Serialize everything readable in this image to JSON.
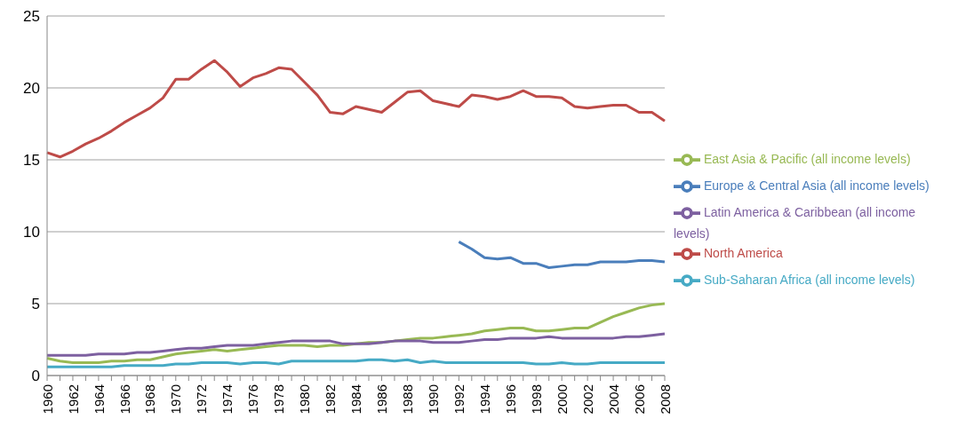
{
  "chart_data": {
    "type": "line",
    "categories": [
      "1960",
      null,
      "1962",
      null,
      "1964",
      null,
      "1966",
      null,
      "1968",
      null,
      "1970",
      null,
      "1972",
      null,
      "1974",
      null,
      "1976",
      null,
      "1978",
      null,
      "1980",
      null,
      "1982",
      null,
      "1984",
      null,
      "1986",
      null,
      "1988",
      null,
      "1990",
      null,
      "1992",
      null,
      "1994",
      null,
      "1996",
      null,
      "1998",
      null,
      "2000",
      null,
      "2002",
      null,
      "2004",
      null,
      "2006",
      null,
      "2008"
    ],
    "series": [
      {
        "name": "Europe & Central Asia (all income levels)",
        "color": "#4a7ebb",
        "values": [
          null,
          null,
          null,
          null,
          null,
          null,
          null,
          null,
          null,
          null,
          null,
          null,
          null,
          null,
          null,
          null,
          null,
          null,
          null,
          null,
          null,
          null,
          null,
          null,
          null,
          null,
          null,
          null,
          null,
          null,
          null,
          null,
          9.3,
          8.8,
          8.2,
          8.1,
          8.2,
          7.8,
          7.8,
          7.5,
          7.6,
          7.7,
          7.7,
          7.9,
          7.9,
          7.9,
          8.0,
          8.0,
          7.9
        ]
      },
      {
        "name": "North America",
        "color": "#be4b48",
        "values": [
          15.5,
          15.2,
          15.6,
          16.1,
          16.5,
          17.0,
          17.6,
          18.1,
          18.6,
          19.3,
          20.6,
          20.6,
          21.3,
          21.9,
          21.1,
          20.1,
          20.7,
          21.0,
          21.4,
          21.3,
          20.4,
          19.5,
          18.3,
          18.2,
          18.7,
          18.5,
          18.3,
          19.0,
          19.7,
          19.8,
          19.1,
          18.9,
          18.7,
          19.5,
          19.4,
          19.2,
          19.4,
          19.8,
          19.4,
          19.4,
          19.3,
          18.7,
          18.6,
          18.7,
          18.8,
          18.8,
          18.3,
          18.3,
          17.7
        ]
      },
      {
        "name": "East Asia & Pacific (all income levels)",
        "color": "#98b954",
        "values": [
          1.2,
          1.0,
          0.9,
          0.9,
          0.9,
          1.0,
          1.0,
          1.1,
          1.1,
          1.3,
          1.5,
          1.6,
          1.7,
          1.8,
          1.7,
          1.8,
          1.9,
          2.0,
          2.1,
          2.1,
          2.1,
          2.0,
          2.1,
          2.1,
          2.2,
          2.3,
          2.3,
          2.4,
          2.5,
          2.6,
          2.6,
          2.7,
          2.8,
          2.9,
          3.1,
          3.2,
          3.3,
          3.3,
          3.1,
          3.1,
          3.2,
          3.3,
          3.3,
          3.7,
          4.1,
          4.4,
          4.7,
          4.9,
          5.0
        ]
      },
      {
        "name": "Latin America & Caribbean (all income levels)",
        "color": "#7d60a0",
        "values": [
          1.4,
          1.4,
          1.4,
          1.4,
          1.5,
          1.5,
          1.5,
          1.6,
          1.6,
          1.7,
          1.8,
          1.9,
          1.9,
          2.0,
          2.1,
          2.1,
          2.1,
          2.2,
          2.3,
          2.4,
          2.4,
          2.4,
          2.4,
          2.2,
          2.2,
          2.2,
          2.3,
          2.4,
          2.4,
          2.4,
          2.3,
          2.3,
          2.3,
          2.4,
          2.5,
          2.5,
          2.6,
          2.6,
          2.6,
          2.7,
          2.6,
          2.6,
          2.6,
          2.6,
          2.6,
          2.7,
          2.7,
          2.8,
          2.9
        ]
      },
      {
        "name": "Sub-Saharan Africa (all income levels)",
        "color": "#46aac5",
        "values": [
          0.6,
          0.6,
          0.6,
          0.6,
          0.6,
          0.6,
          0.7,
          0.7,
          0.7,
          0.7,
          0.8,
          0.8,
          0.9,
          0.9,
          0.9,
          0.8,
          0.9,
          0.9,
          0.8,
          1.0,
          1.0,
          1.0,
          1.0,
          1.0,
          1.0,
          1.1,
          1.1,
          1.0,
          1.1,
          0.9,
          1.0,
          0.9,
          0.9,
          0.9,
          0.9,
          0.9,
          0.9,
          0.9,
          0.8,
          0.8,
          0.9,
          0.8,
          0.8,
          0.9,
          0.9,
          0.9,
          0.9,
          0.9,
          0.9
        ]
      }
    ],
    "ylim": [
      0,
      25
    ],
    "yticks": [
      0,
      5,
      10,
      15,
      20,
      25
    ],
    "grid": "y",
    "legend": "right",
    "marker": "none",
    "line_style": "solid"
  }
}
